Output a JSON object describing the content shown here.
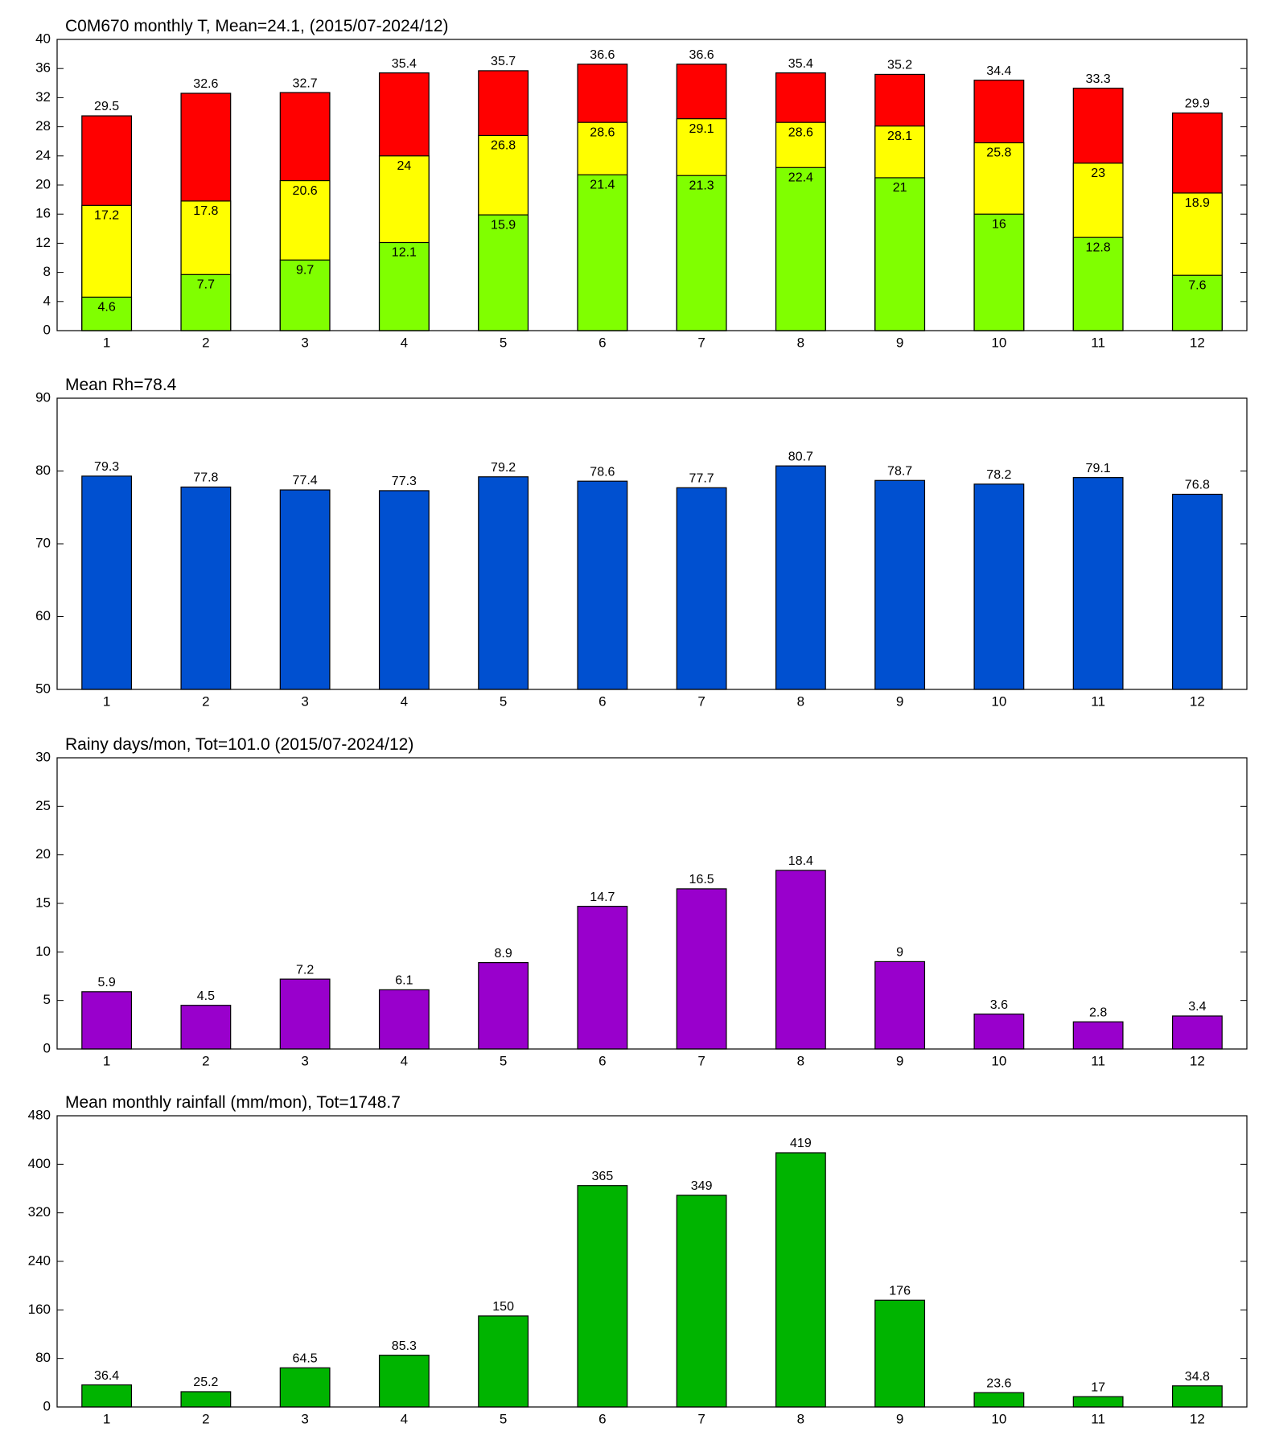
{
  "chart_data": [
    {
      "type": "bar",
      "title": "C0M670 monthly T, Mean=24.1, (2015/07-2024/12)",
      "categories": [
        "1",
        "2",
        "3",
        "4",
        "5",
        "6",
        "7",
        "8",
        "9",
        "10",
        "11",
        "12"
      ],
      "series": [
        {
          "color": "#ff0000",
          "values": [
            29.5,
            32.6,
            32.7,
            35.4,
            35.7,
            36.6,
            36.6,
            35.4,
            35.2,
            34.4,
            33.3,
            29.9
          ]
        },
        {
          "color": "#ffff00",
          "values": [
            17.2,
            17.8,
            20.6,
            24,
            26.8,
            28.6,
            29.1,
            28.6,
            28.1,
            25.8,
            23,
            18.9
          ]
        },
        {
          "color": "#80ff00",
          "values": [
            4.6,
            7.7,
            9.7,
            12.1,
            15.9,
            21.4,
            21.3,
            22.4,
            21,
            16,
            12.8,
            7.6
          ]
        }
      ],
      "ylim": [
        0,
        40
      ],
      "yticks": [
        0,
        4,
        8,
        12,
        16,
        20,
        24,
        28,
        32,
        36,
        40
      ],
      "grid": false
    },
    {
      "type": "bar",
      "title": "Mean Rh=78.4",
      "categories": [
        "1",
        "2",
        "3",
        "4",
        "5",
        "6",
        "7",
        "8",
        "9",
        "10",
        "11",
        "12"
      ],
      "values": [
        79.3,
        77.8,
        77.4,
        77.3,
        79.2,
        78.6,
        77.7,
        80.7,
        78.7,
        78.2,
        79.1,
        76.8
      ],
      "color": "#0050d0",
      "ylim": [
        50,
        90
      ],
      "yticks": [
        50,
        60,
        70,
        80,
        90
      ],
      "grid": false
    },
    {
      "type": "bar",
      "title": "Rainy days/mon, Tot=101.0 (2015/07-2024/12)",
      "categories": [
        "1",
        "2",
        "3",
        "4",
        "5",
        "6",
        "7",
        "8",
        "9",
        "10",
        "11",
        "12"
      ],
      "values": [
        5.9,
        4.5,
        7.2,
        6.1,
        8.9,
        14.7,
        16.5,
        18.4,
        9,
        3.6,
        2.8,
        3.4
      ],
      "color": "#9900cc",
      "ylim": [
        0,
        30
      ],
      "yticks": [
        0,
        5,
        10,
        15,
        20,
        25,
        30
      ],
      "grid": false
    },
    {
      "type": "bar",
      "title": "Mean monthly rainfall (mm/mon), Tot=1748.7",
      "categories": [
        "1",
        "2",
        "3",
        "4",
        "5",
        "6",
        "7",
        "8",
        "9",
        "10",
        "11",
        "12"
      ],
      "values": [
        36.4,
        25.2,
        64.5,
        85.3,
        150,
        365,
        349,
        419,
        176,
        23.6,
        17,
        34.8
      ],
      "color": "#00b400",
      "ylim": [
        0,
        480
      ],
      "yticks": [
        0,
        80,
        160,
        240,
        320,
        400,
        480
      ],
      "grid": false
    }
  ]
}
